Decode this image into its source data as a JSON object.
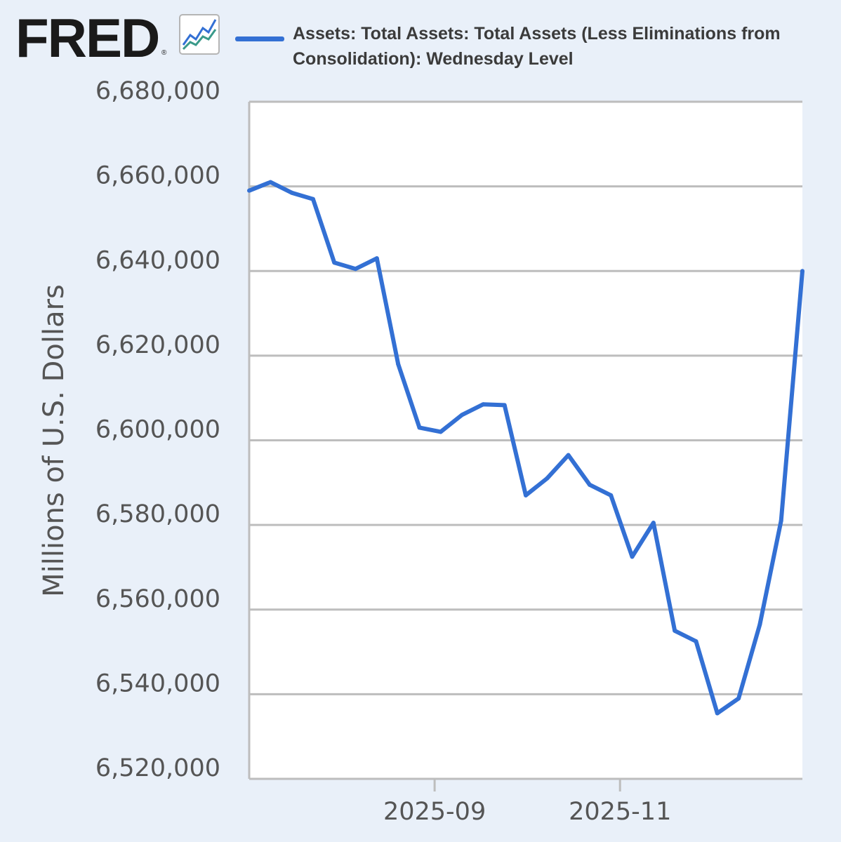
{
  "header": {
    "logo_text": "FRED",
    "logo_mark": "®",
    "logo_icon": "graph-line-icon"
  },
  "colors": {
    "background": "#e9f0f9",
    "plot_background": "#ffffff",
    "series": "#3370d4",
    "grid": "#bdbdbd"
  },
  "chart_data": {
    "type": "line",
    "ylabel": "Millions of U.S. Dollars",
    "xlabel": "",
    "ylim": [
      6520000,
      6680000
    ],
    "yticks": [
      6520000,
      6540000,
      6560000,
      6580000,
      6600000,
      6620000,
      6640000,
      6660000,
      6680000
    ],
    "ytick_labels": [
      "6,520,000",
      "6,540,000",
      "6,560,000",
      "6,580,000",
      "6,600,000",
      "6,620,000",
      "6,640,000",
      "6,660,000",
      "6,680,000"
    ],
    "xlim": [
      "2025-07-02",
      "2025-12-31"
    ],
    "xticks": [
      "2025-09-01",
      "2025-11-01"
    ],
    "xtick_labels": [
      "2025-09",
      "2025-11"
    ],
    "grid": true,
    "legend_position": "top",
    "series": [
      {
        "name": "Assets: Total Assets: Total Assets (Less Eliminations from Consolidation): Wednesday Level",
        "x": [
          "2025-07-02",
          "2025-07-09",
          "2025-07-16",
          "2025-07-23",
          "2025-07-30",
          "2025-08-06",
          "2025-08-13",
          "2025-08-20",
          "2025-08-27",
          "2025-09-03",
          "2025-09-10",
          "2025-09-17",
          "2025-09-24",
          "2025-10-01",
          "2025-10-08",
          "2025-10-15",
          "2025-10-22",
          "2025-10-29",
          "2025-11-05",
          "2025-11-12",
          "2025-11-19",
          "2025-11-26",
          "2025-12-03",
          "2025-12-10",
          "2025-12-17",
          "2025-12-24",
          "2025-12-31"
        ],
        "y": [
          6659000,
          6661000,
          6658500,
          6657000,
          6642000,
          6640500,
          6643000,
          6618000,
          6603000,
          6602000,
          6606000,
          6608500,
          6608300,
          6587000,
          6591000,
          6596500,
          6589500,
          6587000,
          6572500,
          6580500,
          6555000,
          6552500,
          6535500,
          6539000,
          6556500,
          6581000,
          6640000
        ]
      }
    ]
  }
}
